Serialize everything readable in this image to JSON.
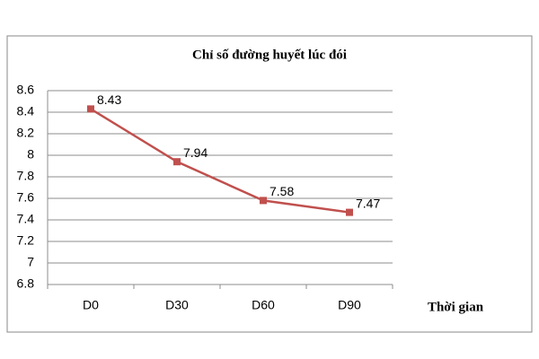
{
  "chart_data": {
    "type": "line",
    "title": "Chỉ số đường huyết lúc đói",
    "x_label": "Thời gian",
    "categories": [
      "D0",
      "D30",
      "D60",
      "D90"
    ],
    "values": [
      8.43,
      7.94,
      7.58,
      7.47
    ],
    "color": "#c0504d",
    "ylim": [
      6.8,
      8.6
    ],
    "yticks": [
      6.8,
      7,
      7.2,
      7.4,
      7.6,
      7.8,
      8,
      8.2,
      8.4,
      8.6
    ],
    "grid": true
  }
}
